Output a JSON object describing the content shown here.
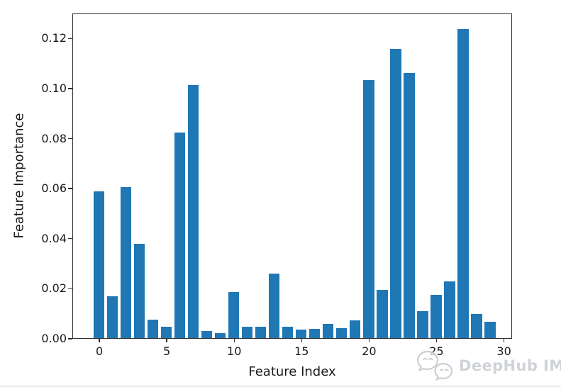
{
  "chart_data": {
    "type": "bar",
    "title": "",
    "xlabel": "Feature Index",
    "ylabel": "Feature Importance",
    "categories": [
      0,
      1,
      2,
      3,
      4,
      5,
      6,
      7,
      8,
      9,
      10,
      11,
      12,
      13,
      14,
      15,
      16,
      17,
      18,
      19,
      20,
      21,
      22,
      23,
      24,
      25,
      26,
      27,
      28,
      29
    ],
    "values": [
      0.0586,
      0.0166,
      0.0603,
      0.0377,
      0.0074,
      0.0046,
      0.0822,
      0.1011,
      0.0028,
      0.0021,
      0.0184,
      0.0046,
      0.0045,
      0.0259,
      0.0045,
      0.0035,
      0.0037,
      0.0056,
      0.004,
      0.007,
      0.1032,
      0.0193,
      0.1157,
      0.1058,
      0.0107,
      0.0174,
      0.0228,
      0.1236,
      0.0096,
      0.0066
    ],
    "xtick_labels": [
      "0",
      "5",
      "10",
      "15",
      "20",
      "25",
      "30"
    ],
    "xtick_values": [
      0,
      5,
      10,
      15,
      20,
      25,
      30
    ],
    "ytick_labels": [
      "0.00",
      "0.02",
      "0.04",
      "0.06",
      "0.08",
      "0.10",
      "0.12"
    ],
    "ylim": [
      0,
      0.13
    ],
    "xlim": [
      -2.0,
      30.6
    ],
    "bar_width": 0.8,
    "bar_color": "#1f77b4",
    "grid": false,
    "legend": "none"
  },
  "watermark": {
    "text": "DeepHub IMBA",
    "logo_icon": "chat-bubbles-logo",
    "color": "#ccd0d4"
  }
}
